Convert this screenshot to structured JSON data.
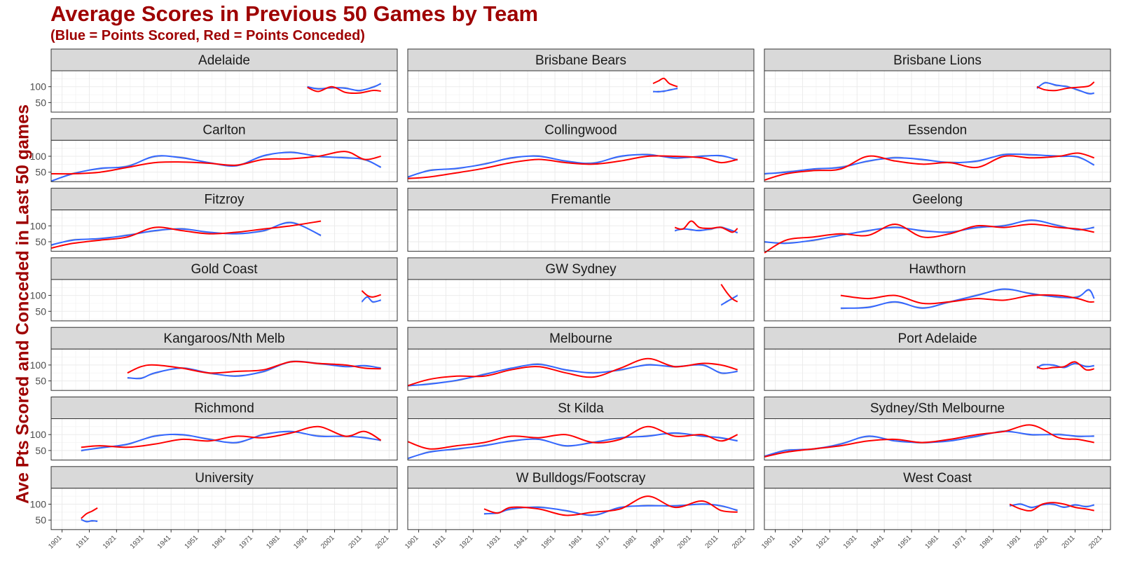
{
  "title": "Average Scores in Previous 50 Games by Team",
  "subtitle": "(Blue = Points Scored, Red = Points Conceded)",
  "colors": {
    "title": "#9e0000",
    "scored": "#3366ff",
    "conceded": "#ff0000",
    "strip": "#d9d9d9",
    "grid": "#ebebeb",
    "raw": "#888888"
  },
  "chart_data": {
    "type": "line",
    "layout": "facet-grid 7x3",
    "ylabel": "Ave Pts Scored and Conceded in Last 50 games",
    "xlabel": "",
    "xlim": [
      1897,
      2024
    ],
    "ylim": [
      20,
      150
    ],
    "x_ticks": [
      "1901",
      "1911",
      "1921",
      "1931",
      "1941",
      "1951",
      "1961",
      "1971",
      "1981",
      "1991",
      "2001",
      "2011",
      "2021"
    ],
    "y_ticks": [
      50,
      100
    ],
    "series_names": [
      "Points Scored",
      "Points Conceded"
    ],
    "panels": [
      {
        "team": "Adelaide",
        "x": [
          1991,
          1995,
          2000,
          2005,
          2010,
          2015,
          2018
        ],
        "scored": [
          100,
          93,
          97,
          95,
          88,
          98,
          110
        ],
        "conceded": [
          98,
          85,
          100,
          82,
          80,
          88,
          86
        ]
      },
      {
        "team": "Brisbane Bears",
        "x": [
          1987,
          1989,
          1991,
          1993,
          1996
        ],
        "scored": [
          85,
          84,
          86,
          89,
          95
        ],
        "conceded": [
          110,
          118,
          126,
          110,
          100
        ]
      },
      {
        "team": "Brisbane Lions",
        "x": [
          1997,
          2000,
          2004,
          2008,
          2012,
          2016,
          2018
        ],
        "scored": [
          95,
          112,
          105,
          100,
          90,
          78,
          80
        ],
        "conceded": [
          100,
          90,
          88,
          95,
          98,
          102,
          115
        ]
      },
      {
        "team": "Carlton",
        "x": [
          1897,
          1905,
          1915,
          1925,
          1935,
          1945,
          1955,
          1965,
          1975,
          1985,
          1995,
          2005,
          2012,
          2018
        ],
        "scored": [
          22,
          45,
          62,
          68,
          100,
          95,
          80,
          70,
          102,
          112,
          100,
          95,
          90,
          65
        ],
        "conceded": [
          45,
          45,
          50,
          65,
          80,
          82,
          78,
          72,
          90,
          92,
          100,
          115,
          90,
          100
        ]
      },
      {
        "team": "Collingwood",
        "x": [
          1897,
          1905,
          1915,
          1925,
          1935,
          1945,
          1955,
          1965,
          1975,
          1985,
          1995,
          2005,
          2012,
          2018
        ],
        "scored": [
          35,
          55,
          62,
          75,
          95,
          100,
          85,
          78,
          100,
          105,
          95,
          100,
          102,
          88
        ],
        "conceded": [
          30,
          35,
          48,
          62,
          80,
          90,
          80,
          75,
          85,
          100,
          100,
          95,
          80,
          90
        ]
      },
      {
        "team": "Essendon",
        "x": [
          1897,
          1905,
          1915,
          1925,
          1935,
          1945,
          1955,
          1965,
          1975,
          1985,
          1995,
          2005,
          2012,
          2018
        ],
        "scored": [
          45,
          50,
          60,
          65,
          85,
          95,
          90,
          80,
          85,
          105,
          105,
          100,
          98,
          72
        ],
        "conceded": [
          25,
          45,
          55,
          60,
          100,
          85,
          75,
          80,
          65,
          100,
          95,
          100,
          110,
          95
        ]
      },
      {
        "team": "Fitzroy",
        "x": [
          1897,
          1905,
          1915,
          1925,
          1935,
          1945,
          1955,
          1965,
          1975,
          1985,
          1996
        ],
        "scored": [
          40,
          55,
          60,
          70,
          85,
          90,
          80,
          75,
          85,
          110,
          70
        ],
        "conceded": [
          30,
          45,
          55,
          65,
          95,
          85,
          75,
          80,
          90,
          100,
          115
        ]
      },
      {
        "team": "Fremantle",
        "x": [
          1995,
          1998,
          2001,
          2004,
          2008,
          2012,
          2016,
          2018
        ],
        "scored": [
          85,
          90,
          88,
          85,
          90,
          95,
          85,
          78
        ],
        "conceded": [
          95,
          90,
          115,
          95,
          92,
          95,
          80,
          92
        ]
      },
      {
        "team": "Geelong",
        "x": [
          1897,
          1905,
          1915,
          1925,
          1935,
          1945,
          1955,
          1965,
          1975,
          1985,
          1995,
          2005,
          2012,
          2018
        ],
        "scored": [
          50,
          45,
          55,
          70,
          85,
          95,
          85,
          80,
          95,
          100,
          118,
          100,
          88,
          95
        ],
        "conceded": [
          15,
          55,
          65,
          75,
          70,
          105,
          65,
          75,
          100,
          95,
          105,
          95,
          90,
          80
        ]
      },
      {
        "team": "Gold Coast",
        "x": [
          2011,
          2013,
          2015,
          2018
        ],
        "scored": [
          80,
          95,
          80,
          85
        ],
        "conceded": [
          115,
          100,
          95,
          102
        ]
      },
      {
        "team": "GW Sydney",
        "x": [
          2012,
          2014,
          2016,
          2018
        ],
        "scored": [
          70,
          80,
          90,
          100
        ],
        "conceded": [
          135,
          110,
          90,
          80
        ]
      },
      {
        "team": "Hawthorn",
        "x": [
          1925,
          1935,
          1945,
          1955,
          1965,
          1975,
          1985,
          1995,
          2005,
          2012,
          2016,
          2018
        ],
        "scored": [
          60,
          62,
          80,
          60,
          80,
          100,
          120,
          105,
          95,
          95,
          118,
          90
        ],
        "conceded": [
          100,
          90,
          100,
          75,
          80,
          90,
          85,
          100,
          100,
          90,
          80,
          80
        ]
      },
      {
        "team": "Kangaroos/Nth Melb",
        "x": [
          1925,
          1930,
          1935,
          1945,
          1955,
          1965,
          1975,
          1985,
          1995,
          2005,
          2012,
          2018
        ],
        "scored": [
          60,
          58,
          75,
          90,
          75,
          65,
          80,
          110,
          105,
          95,
          98,
          90
        ],
        "conceded": [
          75,
          95,
          100,
          90,
          75,
          80,
          85,
          110,
          105,
          100,
          90,
          88
        ]
      },
      {
        "team": "Melbourne",
        "x": [
          1897,
          1905,
          1915,
          1925,
          1935,
          1945,
          1955,
          1965,
          1975,
          1985,
          1995,
          2005,
          2012,
          2018
        ],
        "scored": [
          35,
          40,
          52,
          70,
          90,
          102,
          85,
          75,
          85,
          100,
          95,
          100,
          75,
          80
        ],
        "conceded": [
          35,
          55,
          65,
          65,
          85,
          95,
          75,
          62,
          90,
          120,
          95,
          105,
          100,
          85
        ]
      },
      {
        "team": "Port Adelaide",
        "x": [
          1997,
          1999,
          2003,
          2007,
          2011,
          2015,
          2018
        ],
        "scored": [
          90,
          100,
          100,
          92,
          105,
          95,
          98
        ],
        "conceded": [
          95,
          88,
          92,
          95,
          110,
          85,
          88
        ]
      },
      {
        "team": "Richmond",
        "x": [
          1908,
          1915,
          1925,
          1935,
          1945,
          1955,
          1965,
          1975,
          1985,
          1995,
          2005,
          2012,
          2018
        ],
        "scored": [
          50,
          58,
          70,
          95,
          100,
          85,
          75,
          100,
          110,
          95,
          95,
          90,
          82
        ],
        "conceded": [
          60,
          65,
          60,
          70,
          85,
          80,
          95,
          90,
          105,
          125,
          95,
          110,
          82
        ]
      },
      {
        "team": "St Kilda",
        "x": [
          1897,
          1905,
          1915,
          1925,
          1935,
          1945,
          1955,
          1965,
          1975,
          1985,
          1995,
          2005,
          2012,
          2018
        ],
        "scored": [
          25,
          45,
          55,
          65,
          80,
          85,
          65,
          75,
          90,
          95,
          105,
          95,
          90,
          80
        ],
        "conceded": [
          78,
          55,
          65,
          75,
          95,
          90,
          100,
          75,
          85,
          125,
          95,
          100,
          80,
          100
        ]
      },
      {
        "team": "Sydney/Sth Melbourne",
        "x": [
          1897,
          1905,
          1915,
          1925,
          1935,
          1945,
          1955,
          1965,
          1975,
          1985,
          1995,
          2005,
          2012,
          2018
        ],
        "scored": [
          32,
          50,
          55,
          70,
          95,
          80,
          75,
          80,
          95,
          110,
          100,
          100,
          95,
          95
        ],
        "conceded": [
          30,
          45,
          55,
          65,
          80,
          85,
          75,
          85,
          100,
          110,
          130,
          90,
          85,
          75
        ]
      },
      {
        "team": "University",
        "x": [
          1908,
          1910,
          1912,
          1914
        ],
        "scored": [
          52,
          45,
          48,
          46
        ],
        "conceded": [
          55,
          70,
          78,
          88
        ]
      },
      {
        "team": "W Bulldogs/Footscray",
        "x": [
          1925,
          1930,
          1935,
          1945,
          1955,
          1965,
          1975,
          1985,
          1995,
          2005,
          2012,
          2018
        ],
        "scored": [
          70,
          72,
          85,
          90,
          80,
          65,
          90,
          95,
          95,
          100,
          95,
          80
        ],
        "conceded": [
          85,
          72,
          90,
          85,
          65,
          75,
          85,
          125,
          90,
          110,
          80,
          75
        ]
      },
      {
        "team": "West Coast",
        "x": [
          1987,
          1991,
          1995,
          1999,
          2003,
          2007,
          2011,
          2015,
          2018
        ],
        "scored": [
          95,
          100,
          90,
          98,
          100,
          90,
          98,
          92,
          98
        ],
        "conceded": [
          100,
          85,
          80,
          100,
          105,
          100,
          90,
          85,
          80
        ]
      }
    ]
  }
}
